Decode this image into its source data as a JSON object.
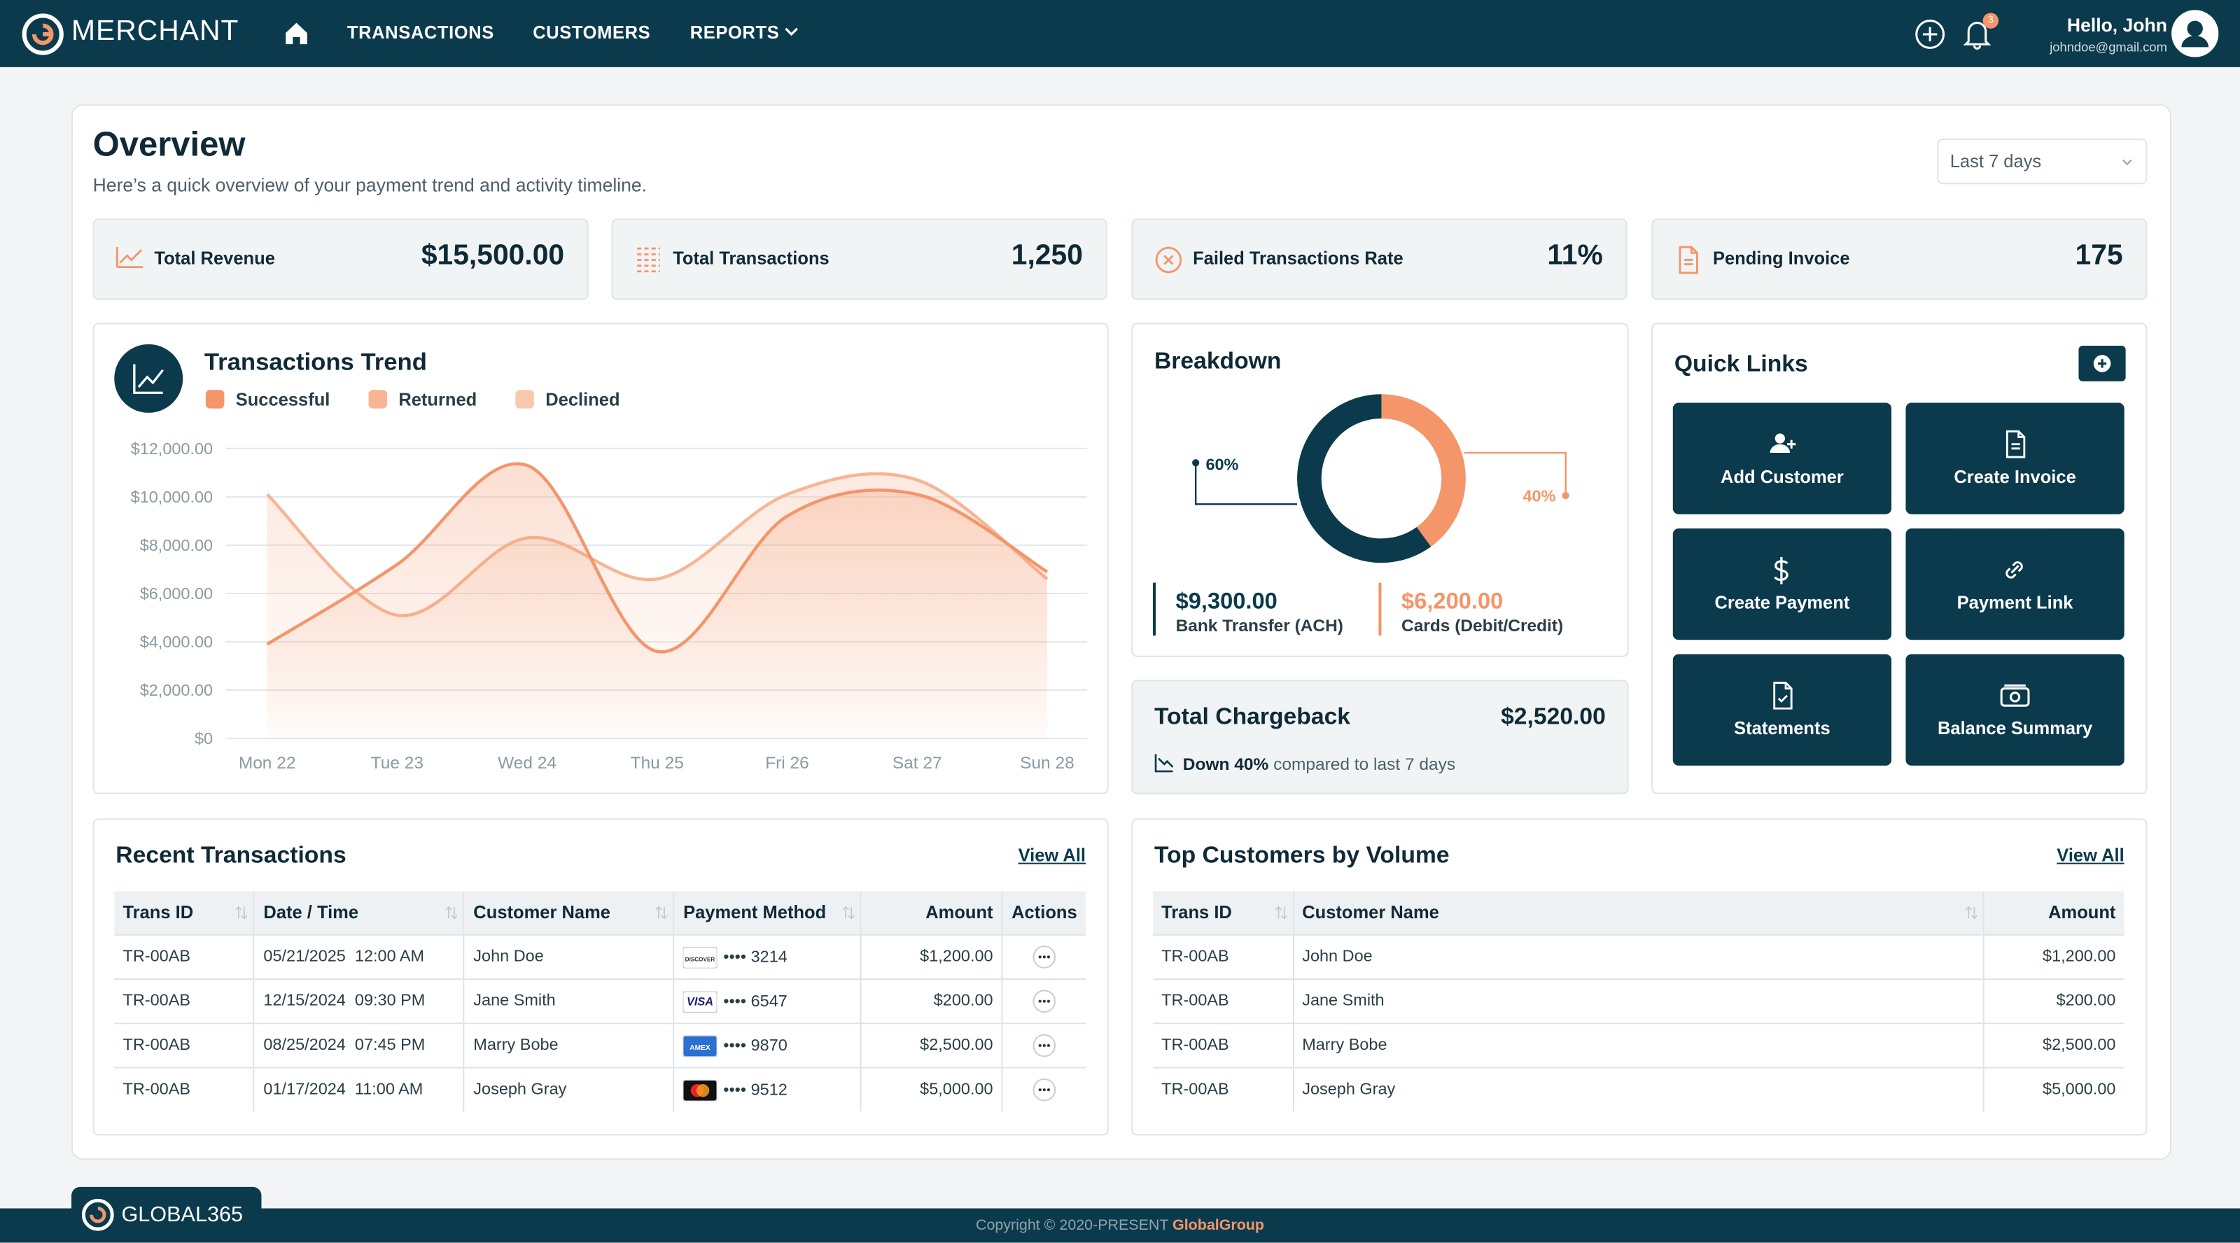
{
  "nav": {
    "brand": "MERCHANT",
    "links": [
      "TRANSACTIONS",
      "CUSTOMERS",
      "REPORTS"
    ],
    "badge": "3",
    "greeting": "Hello, John",
    "email": "johndoe@gmail.com"
  },
  "header": {
    "title": "Overview",
    "subtitle": "Here’s a quick overview of your payment trend and activity timeline.",
    "range": "Last 7 days"
  },
  "kpis": [
    {
      "label": "Total Revenue",
      "value": "$15,500.00"
    },
    {
      "label": "Total Transactions",
      "value": "1,250"
    },
    {
      "label": "Failed Transactions Rate",
      "value": "11%"
    },
    {
      "label": "Pending Invoice",
      "value": "175"
    }
  ],
  "chart_data": [
    {
      "type": "line",
      "title": "Transactions Trend",
      "categories": [
        "Mon 22",
        "Tue 23",
        "Wed 24",
        "Thu 25",
        "Fri 26",
        "Sat 27",
        "Sun 28"
      ],
      "series": [
        {
          "name": "Successful",
          "color": "#f4956a",
          "values": [
            3900,
            7200,
            11300,
            3600,
            9200,
            10100,
            6900
          ]
        },
        {
          "name": "Returned",
          "color": "#f7b594",
          "values": [
            10100,
            5100,
            8300,
            6600,
            10100,
            10700,
            6600
          ]
        },
        {
          "name": "Declined",
          "color": "#f9c9ad",
          "values": [
            null,
            null,
            null,
            null,
            null,
            null,
            null
          ]
        }
      ],
      "ylim": [
        0,
        12000
      ],
      "yticks": [
        {
          "value": 0,
          "label": "$0"
        },
        {
          "value": 2000,
          "label": "$2,000.00"
        },
        {
          "value": 4000,
          "label": "$4,000.00"
        },
        {
          "value": 6000,
          "label": "$6,000.00"
        },
        {
          "value": 8000,
          "label": "$8,000.00"
        },
        {
          "value": 10000,
          "label": "$10,000.00"
        },
        {
          "value": 12000,
          "label": "$12,000.00"
        }
      ],
      "grid": true
    },
    {
      "type": "pie",
      "title": "Breakdown",
      "categories": [
        "Bank Transfer (ACH)",
        "Cards (Debit/Credit)"
      ],
      "values": [
        60,
        40
      ],
      "value_labels": [
        "60%",
        "40%"
      ],
      "amount_labels": [
        "$9,300.00",
        "$6,200.00"
      ],
      "colors": [
        "#0b3a4c",
        "#f4956a"
      ]
    }
  ],
  "chargeback": {
    "title": "Total Chargeback",
    "amount": "$2,520.00",
    "change": "Down 40%",
    "note": "compared to last 7 days"
  },
  "quick_links": {
    "title": "Quick Links",
    "items": [
      "Add Customer",
      "Create Invoice",
      "Create Payment",
      "Payment Link",
      "Statements",
      "Balance Summary"
    ]
  },
  "recent_transactions": {
    "title": "Recent Transactions",
    "view_all": "View All",
    "columns": [
      "Trans ID",
      "Date / Time",
      "Customer Name",
      "Payment Method",
      "Amount",
      "Actions"
    ],
    "rows": [
      [
        "TR-00AB",
        "05/21/2025  12:00 AM",
        "John Doe",
        {
          "icon": "discover",
          "icon_text": "DISCOVER",
          "number": "•••• 3214"
        },
        "$1,200.00"
      ],
      [
        "TR-00AB",
        "12/15/2024  09:30 PM",
        "Jane Smith",
        {
          "icon": "visa",
          "icon_text": "VISA",
          "number": "•••• 6547"
        },
        "$200.00"
      ],
      [
        "TR-00AB",
        "08/25/2024  07:45 PM",
        "Marry Bobe",
        {
          "icon": "amex",
          "icon_text": "AMEX",
          "number": "•••• 9870"
        },
        "$2,500.00"
      ],
      [
        "TR-00AB",
        "01/17/2024  11:00 AM",
        "Joseph Gray",
        {
          "icon": "mastercard",
          "number": "•••• 9512"
        },
        "$5,000.00"
      ]
    ]
  },
  "top_customers": {
    "title": "Top Customers by Volume",
    "view_all": "View All",
    "columns": [
      "Trans ID",
      "Customer Name",
      "Amount"
    ],
    "rows": [
      [
        "TR-00AB",
        "John Doe",
        "$1,200.00"
      ],
      [
        "TR-00AB",
        "Jane Smith",
        "$200.00"
      ],
      [
        "TR-00AB",
        "Marry Bobe",
        "$2,500.00"
      ],
      [
        "TR-00AB",
        "Joseph Gray",
        "$5,000.00"
      ]
    ]
  },
  "footer": {
    "logo": "GLOBAL365",
    "copyright": "Copyright © 2020-PRESENT",
    "company": "GlobalGroup"
  }
}
